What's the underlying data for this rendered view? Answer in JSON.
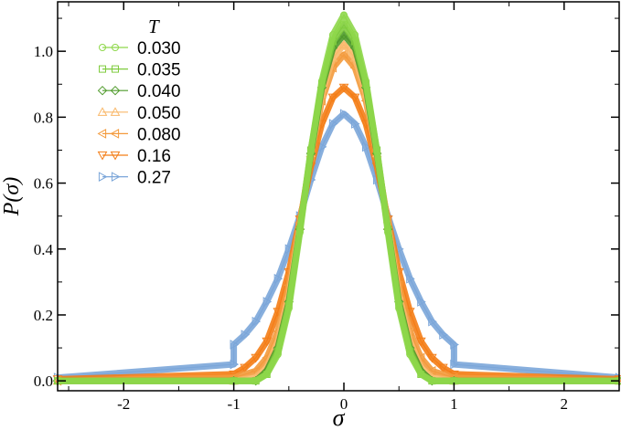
{
  "chart_data": {
    "type": "line",
    "title": "",
    "xlabel": "σ",
    "ylabel": "P(σ)",
    "xlim": [
      -2.6,
      2.5
    ],
    "ylim": [
      -0.03,
      1.15
    ],
    "x_ticks": [
      -2,
      -1,
      0,
      1,
      2
    ],
    "x_tick_labels": [
      "-2",
      "-1",
      "0",
      "1",
      "2"
    ],
    "y_ticks": [
      0.0,
      0.2,
      0.4,
      0.6,
      0.8,
      1.0
    ],
    "y_tick_labels": [
      "0.0",
      "0.2",
      "0.4",
      "0.6",
      "0.8",
      "1.0"
    ],
    "grid": false,
    "legend_title": "T",
    "legend_position": "top-left",
    "series": [
      {
        "name": "0.030",
        "color": "#8ed74a",
        "marker": "circle",
        "x": [
          -2.6,
          -1.0,
          -0.8,
          -0.7,
          -0.6,
          -0.5,
          -0.4,
          -0.3,
          -0.2,
          -0.1,
          0.0,
          0.1,
          0.2,
          0.3,
          0.4,
          0.5,
          0.6,
          0.7,
          0.8,
          1.0,
          2.5
        ],
        "y": [
          0.0,
          0.0,
          0.0,
          0.02,
          0.08,
          0.22,
          0.45,
          0.7,
          0.91,
          1.05,
          1.11,
          1.05,
          0.91,
          0.7,
          0.45,
          0.22,
          0.08,
          0.02,
          0.0,
          0.0,
          0.0
        ]
      },
      {
        "name": "0.035",
        "color": "#7fcc3e",
        "marker": "square",
        "x": [
          -2.6,
          -1.0,
          -0.8,
          -0.7,
          -0.6,
          -0.5,
          -0.4,
          -0.3,
          -0.2,
          -0.1,
          0.0,
          0.1,
          0.2,
          0.3,
          0.4,
          0.5,
          0.6,
          0.7,
          0.8,
          1.0,
          2.5
        ],
        "y": [
          0.0,
          0.0,
          0.0,
          0.02,
          0.09,
          0.23,
          0.46,
          0.7,
          0.9,
          1.03,
          1.08,
          1.03,
          0.9,
          0.7,
          0.46,
          0.23,
          0.09,
          0.02,
          0.0,
          0.0,
          0.0
        ]
      },
      {
        "name": "0.040",
        "color": "#4e9a2a",
        "marker": "diamond",
        "x": [
          -2.6,
          -1.0,
          -0.8,
          -0.7,
          -0.6,
          -0.5,
          -0.4,
          -0.3,
          -0.2,
          -0.1,
          0.0,
          0.1,
          0.2,
          0.3,
          0.4,
          0.5,
          0.6,
          0.7,
          0.8,
          1.0,
          2.5
        ],
        "y": [
          0.0,
          0.0,
          0.0,
          0.03,
          0.1,
          0.24,
          0.46,
          0.69,
          0.89,
          1.01,
          1.05,
          1.01,
          0.89,
          0.69,
          0.46,
          0.24,
          0.1,
          0.03,
          0.0,
          0.0,
          0.0
        ]
      },
      {
        "name": "0.050",
        "color": "#f9b86a",
        "marker": "triangle-up",
        "x": [
          -2.6,
          -1.0,
          -0.8,
          -0.7,
          -0.6,
          -0.5,
          -0.4,
          -0.3,
          -0.2,
          -0.1,
          0.0,
          0.1,
          0.2,
          0.3,
          0.4,
          0.5,
          0.6,
          0.7,
          0.8,
          1.0,
          2.5
        ],
        "y": [
          0.0,
          0.0,
          0.01,
          0.04,
          0.12,
          0.26,
          0.47,
          0.69,
          0.87,
          0.98,
          1.02,
          0.98,
          0.87,
          0.69,
          0.47,
          0.26,
          0.12,
          0.04,
          0.01,
          0.0,
          0.0
        ]
      },
      {
        "name": "0.080",
        "color": "#f39a3c",
        "marker": "triangle-left",
        "x": [
          -2.6,
          -1.0,
          -0.8,
          -0.7,
          -0.6,
          -0.5,
          -0.4,
          -0.3,
          -0.2,
          -0.1,
          0.0,
          0.1,
          0.2,
          0.3,
          0.4,
          0.5,
          0.6,
          0.7,
          0.8,
          1.0,
          2.5
        ],
        "y": [
          0.0,
          0.01,
          0.03,
          0.07,
          0.15,
          0.29,
          0.48,
          0.68,
          0.85,
          0.95,
          0.99,
          0.95,
          0.85,
          0.68,
          0.48,
          0.29,
          0.15,
          0.07,
          0.03,
          0.01,
          0.0
        ]
      },
      {
        "name": "0.16",
        "color": "#f47d16",
        "marker": "triangle-down",
        "x": [
          -2.6,
          -1.0,
          -0.9,
          -0.8,
          -0.7,
          -0.6,
          -0.5,
          -0.4,
          -0.3,
          -0.2,
          -0.1,
          0.0,
          0.1,
          0.2,
          0.3,
          0.4,
          0.5,
          0.6,
          0.7,
          0.8,
          0.9,
          1.0,
          2.5
        ],
        "y": [
          0.005,
          0.02,
          0.04,
          0.07,
          0.12,
          0.21,
          0.33,
          0.49,
          0.65,
          0.78,
          0.86,
          0.89,
          0.86,
          0.78,
          0.65,
          0.49,
          0.33,
          0.21,
          0.12,
          0.07,
          0.04,
          0.02,
          0.005
        ]
      },
      {
        "name": "0.27",
        "color": "#7ba6d9",
        "marker": "triangle-right",
        "x": [
          -2.6,
          -1.0,
          -1.0,
          -0.9,
          -0.8,
          -0.7,
          -0.6,
          -0.5,
          -0.4,
          -0.3,
          -0.2,
          -0.1,
          0.0,
          0.1,
          0.2,
          0.3,
          0.4,
          0.5,
          0.6,
          0.7,
          0.8,
          0.9,
          1.0,
          1.0,
          2.5
        ],
        "y": [
          0.01,
          0.05,
          0.11,
          0.14,
          0.18,
          0.24,
          0.31,
          0.4,
          0.5,
          0.61,
          0.71,
          0.78,
          0.81,
          0.78,
          0.71,
          0.61,
          0.5,
          0.4,
          0.31,
          0.24,
          0.18,
          0.14,
          0.11,
          0.05,
          0.01
        ]
      }
    ]
  }
}
